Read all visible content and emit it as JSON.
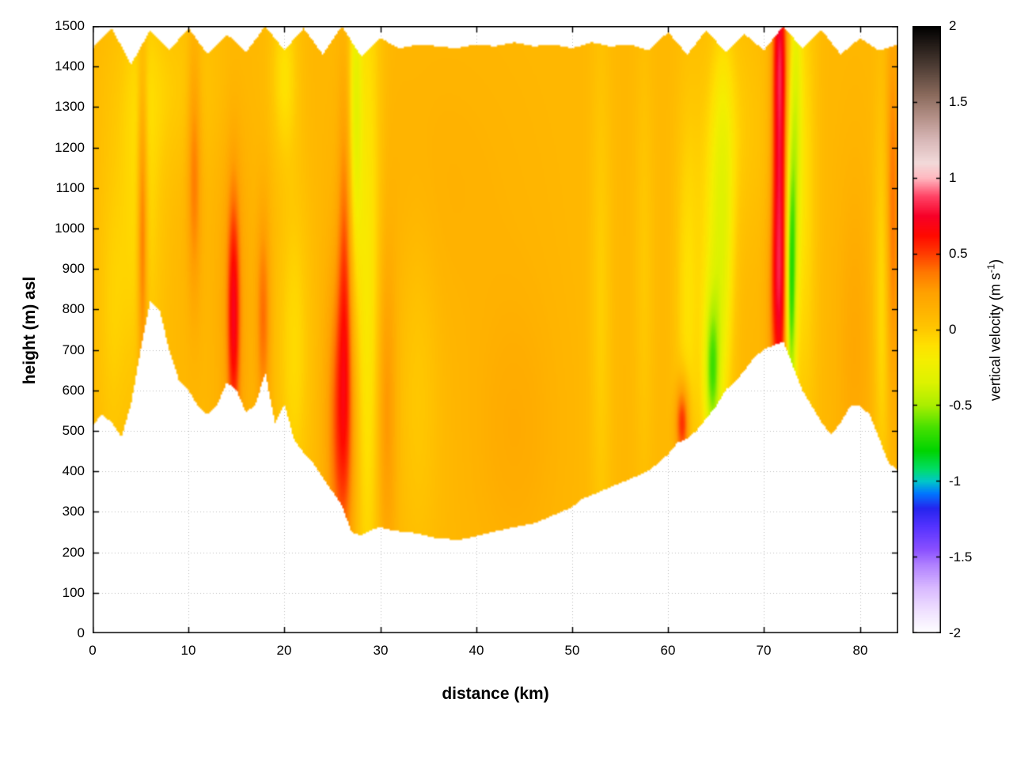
{
  "figure": {
    "background": "#ffffff"
  },
  "axes": {
    "x": {
      "label": "distance (km)",
      "min": 0,
      "max": 84,
      "ticks": [
        0,
        10,
        20,
        30,
        40,
        50,
        60,
        70,
        80
      ]
    },
    "y": {
      "label": "height (m) asl",
      "min": 0,
      "max": 1500,
      "ticks": [
        0,
        100,
        200,
        300,
        400,
        500,
        600,
        700,
        800,
        900,
        1000,
        1100,
        1200,
        1300,
        1400,
        1500
      ]
    }
  },
  "colorbar": {
    "min": -2,
    "max": 2,
    "tick_values": [
      2,
      1.5,
      1,
      0.5,
      0,
      -0.5,
      -1,
      -1.5,
      -2
    ],
    "tick_labels": [
      "2",
      "1.5",
      "1",
      "0.5",
      "0",
      "-0.5",
      "-1",
      "-1.5",
      "-2"
    ],
    "label_pre": "vertical velocity (m s",
    "label_sup": "-1",
    "label_post": ")"
  },
  "chart_data": {
    "type": "heatmap",
    "title": "",
    "xlabel": "distance (km)",
    "ylabel": "height (m) asl",
    "value_label": "vertical velocity (m s^-1)",
    "x_range": [
      0,
      84
    ],
    "y_range": [
      0,
      1500
    ],
    "value_range": [
      -2,
      2
    ],
    "grid": true,
    "legend_position": "right-colorbar",
    "base_value": 0.1,
    "terrain_km_step": 1,
    "terrain_height_m": [
      515,
      540,
      520,
      485,
      565,
      700,
      820,
      795,
      700,
      625,
      600,
      560,
      540,
      565,
      620,
      600,
      545,
      565,
      645,
      520,
      565,
      480,
      445,
      420,
      385,
      350,
      315,
      250,
      242,
      255,
      262,
      256,
      252,
      250,
      246,
      240,
      234,
      233,
      230,
      234,
      240,
      246,
      252,
      257,
      262,
      267,
      272,
      281,
      291,
      301,
      312,
      331,
      341,
      351,
      361,
      371,
      381,
      391,
      402,
      421,
      442,
      471,
      481,
      501,
      531,
      561,
      601,
      621,
      651,
      681,
      701,
      711,
      721,
      661,
      601,
      561,
      521,
      491,
      521,
      561,
      561,
      541,
      481,
      421,
      401
    ],
    "top_km_step": 2,
    "top_height_m": [
      1445,
      1495,
      1405,
      1490,
      1440,
      1495,
      1430,
      1480,
      1435,
      1500,
      1440,
      1495,
      1430,
      1500,
      1425,
      1470,
      1445,
      1455,
      1450,
      1445,
      1455,
      1450,
      1460,
      1450,
      1455,
      1445,
      1460,
      1450,
      1455,
      1440,
      1485,
      1430,
      1490,
      1435,
      1480,
      1440,
      1500,
      1445,
      1490,
      1430,
      1470,
      1440,
      1455
    ],
    "features": [
      {
        "x": 2.0,
        "z": 800,
        "sx": 1.2,
        "sz": 300,
        "a": -0.12
      },
      {
        "x": 5.1,
        "z": 1060,
        "sx": 1.6,
        "sz": 330,
        "a": -0.18
      },
      {
        "x": 5.2,
        "z": 1000,
        "sx": 0.35,
        "sz": 280,
        "a": 0.42
      },
      {
        "x": 8.0,
        "z": 1350,
        "sx": 4.0,
        "sz": 150,
        "a": -0.1
      },
      {
        "x": 10.6,
        "z": 1150,
        "sx": 0.5,
        "sz": 220,
        "a": 0.28
      },
      {
        "x": 14.7,
        "z": 790,
        "sx": 0.45,
        "sz": 210,
        "a": 0.5
      },
      {
        "x": 14.7,
        "z": 800,
        "sx": 1.2,
        "sz": 330,
        "a": 0.12
      },
      {
        "x": 17.8,
        "z": 780,
        "sx": 0.5,
        "sz": 180,
        "a": 0.3
      },
      {
        "x": 20.0,
        "z": 1380,
        "sx": 1.0,
        "sz": 150,
        "a": -0.2
      },
      {
        "x": 21.0,
        "z": 700,
        "sx": 1.2,
        "sz": 300,
        "a": -0.18
      },
      {
        "x": 26.0,
        "z": 520,
        "sx": 1.0,
        "sz": 260,
        "a": 0.45
      },
      {
        "x": 26.3,
        "z": 900,
        "sx": 0.5,
        "sz": 300,
        "a": 0.3
      },
      {
        "x": 28.6,
        "z": 900,
        "sx": 1.1,
        "sz": 650,
        "a": -0.28
      },
      {
        "x": 27.4,
        "z": 1300,
        "sx": 0.45,
        "sz": 260,
        "a": -0.3
      },
      {
        "x": 30.6,
        "z": 550,
        "sx": 0.7,
        "sz": 280,
        "a": 0.22
      },
      {
        "x": 34.0,
        "z": 600,
        "sx": 1.5,
        "sz": 300,
        "a": -0.1
      },
      {
        "x": 36.0,
        "z": 1100,
        "sx": 6.0,
        "sz": 250,
        "a": 0.04
      },
      {
        "x": 44.0,
        "z": 500,
        "sx": 3.0,
        "sz": 250,
        "a": 0.08
      },
      {
        "x": 53.0,
        "z": 800,
        "sx": 0.8,
        "sz": 500,
        "a": -0.13
      },
      {
        "x": 57.5,
        "z": 900,
        "sx": 0.7,
        "sz": 400,
        "a": -0.1
      },
      {
        "x": 61.5,
        "z": 520,
        "sx": 0.5,
        "sz": 70,
        "a": 0.55
      },
      {
        "x": 62.0,
        "z": 800,
        "sx": 0.9,
        "sz": 350,
        "a": -0.2
      },
      {
        "x": 64.6,
        "z": 640,
        "sx": 0.55,
        "sz": 130,
        "a": -0.5
      },
      {
        "x": 64.9,
        "z": 800,
        "sx": 1.1,
        "sz": 300,
        "a": -0.28
      },
      {
        "x": 65.8,
        "z": 1050,
        "sx": 0.8,
        "sz": 300,
        "a": -0.22
      },
      {
        "x": 66.5,
        "z": 1250,
        "sx": 2.5,
        "sz": 200,
        "a": -0.12
      },
      {
        "x": 71.6,
        "z": 1150,
        "sx": 0.55,
        "sz": 420,
        "a": 0.68
      },
      {
        "x": 71.7,
        "z": 1430,
        "sx": 0.45,
        "sz": 120,
        "a": 0.18
      },
      {
        "x": 71.4,
        "z": 820,
        "sx": 0.7,
        "sz": 150,
        "a": 0.2
      },
      {
        "x": 72.8,
        "z": 860,
        "sx": 0.38,
        "sz": 240,
        "a": -0.75
      },
      {
        "x": 73.3,
        "z": 1250,
        "sx": 0.45,
        "sz": 300,
        "a": -0.35
      },
      {
        "x": 74.3,
        "z": 1100,
        "sx": 0.9,
        "sz": 500,
        "a": -0.18
      },
      {
        "x": 79.5,
        "z": 700,
        "sx": 1.2,
        "sz": 300,
        "a": 0.1
      },
      {
        "x": 82.3,
        "z": 800,
        "sx": 0.6,
        "sz": 350,
        "a": -0.18
      },
      {
        "x": 83.4,
        "z": 1050,
        "sx": 0.45,
        "sz": 300,
        "a": 0.3
      }
    ],
    "palette": [
      [
        -2.0,
        "#ffffff"
      ],
      [
        -1.85,
        "#efe0ff"
      ],
      [
        -1.7,
        "#d8b8ff"
      ],
      [
        -1.55,
        "#b080ff"
      ],
      [
        -1.45,
        "#8a50ff"
      ],
      [
        -1.3,
        "#5533ff"
      ],
      [
        -1.18,
        "#2525ee"
      ],
      [
        -1.08,
        "#0077ff"
      ],
      [
        -1.0,
        "#00c8c8"
      ],
      [
        -0.92,
        "#00dd66"
      ],
      [
        -0.8,
        "#00d400"
      ],
      [
        -0.65,
        "#44e000"
      ],
      [
        -0.5,
        "#aaee00"
      ],
      [
        -0.35,
        "#ddf200"
      ],
      [
        -0.2,
        "#f5ee00"
      ],
      [
        -0.1,
        "#ffe000"
      ],
      [
        0.0,
        "#ffc800"
      ],
      [
        0.12,
        "#ffb400"
      ],
      [
        0.25,
        "#ffa000"
      ],
      [
        0.38,
        "#ff7700"
      ],
      [
        0.5,
        "#ff3c00"
      ],
      [
        0.62,
        "#ff0a00"
      ],
      [
        0.75,
        "#f70028"
      ],
      [
        0.88,
        "#ff4466"
      ],
      [
        1.0,
        "#ffb8c0"
      ],
      [
        1.1,
        "#f2dada"
      ],
      [
        1.25,
        "#d8b8b8"
      ],
      [
        1.4,
        "#b49088"
      ],
      [
        1.55,
        "#8a6a5c"
      ],
      [
        1.75,
        "#4a3a32"
      ],
      [
        2.0,
        "#000000"
      ]
    ],
    "grid_color": "#bcbcbc"
  },
  "layout_note": "terrain cross-section heatmap of vertical velocity; white = no data (terrain below, model top above)"
}
